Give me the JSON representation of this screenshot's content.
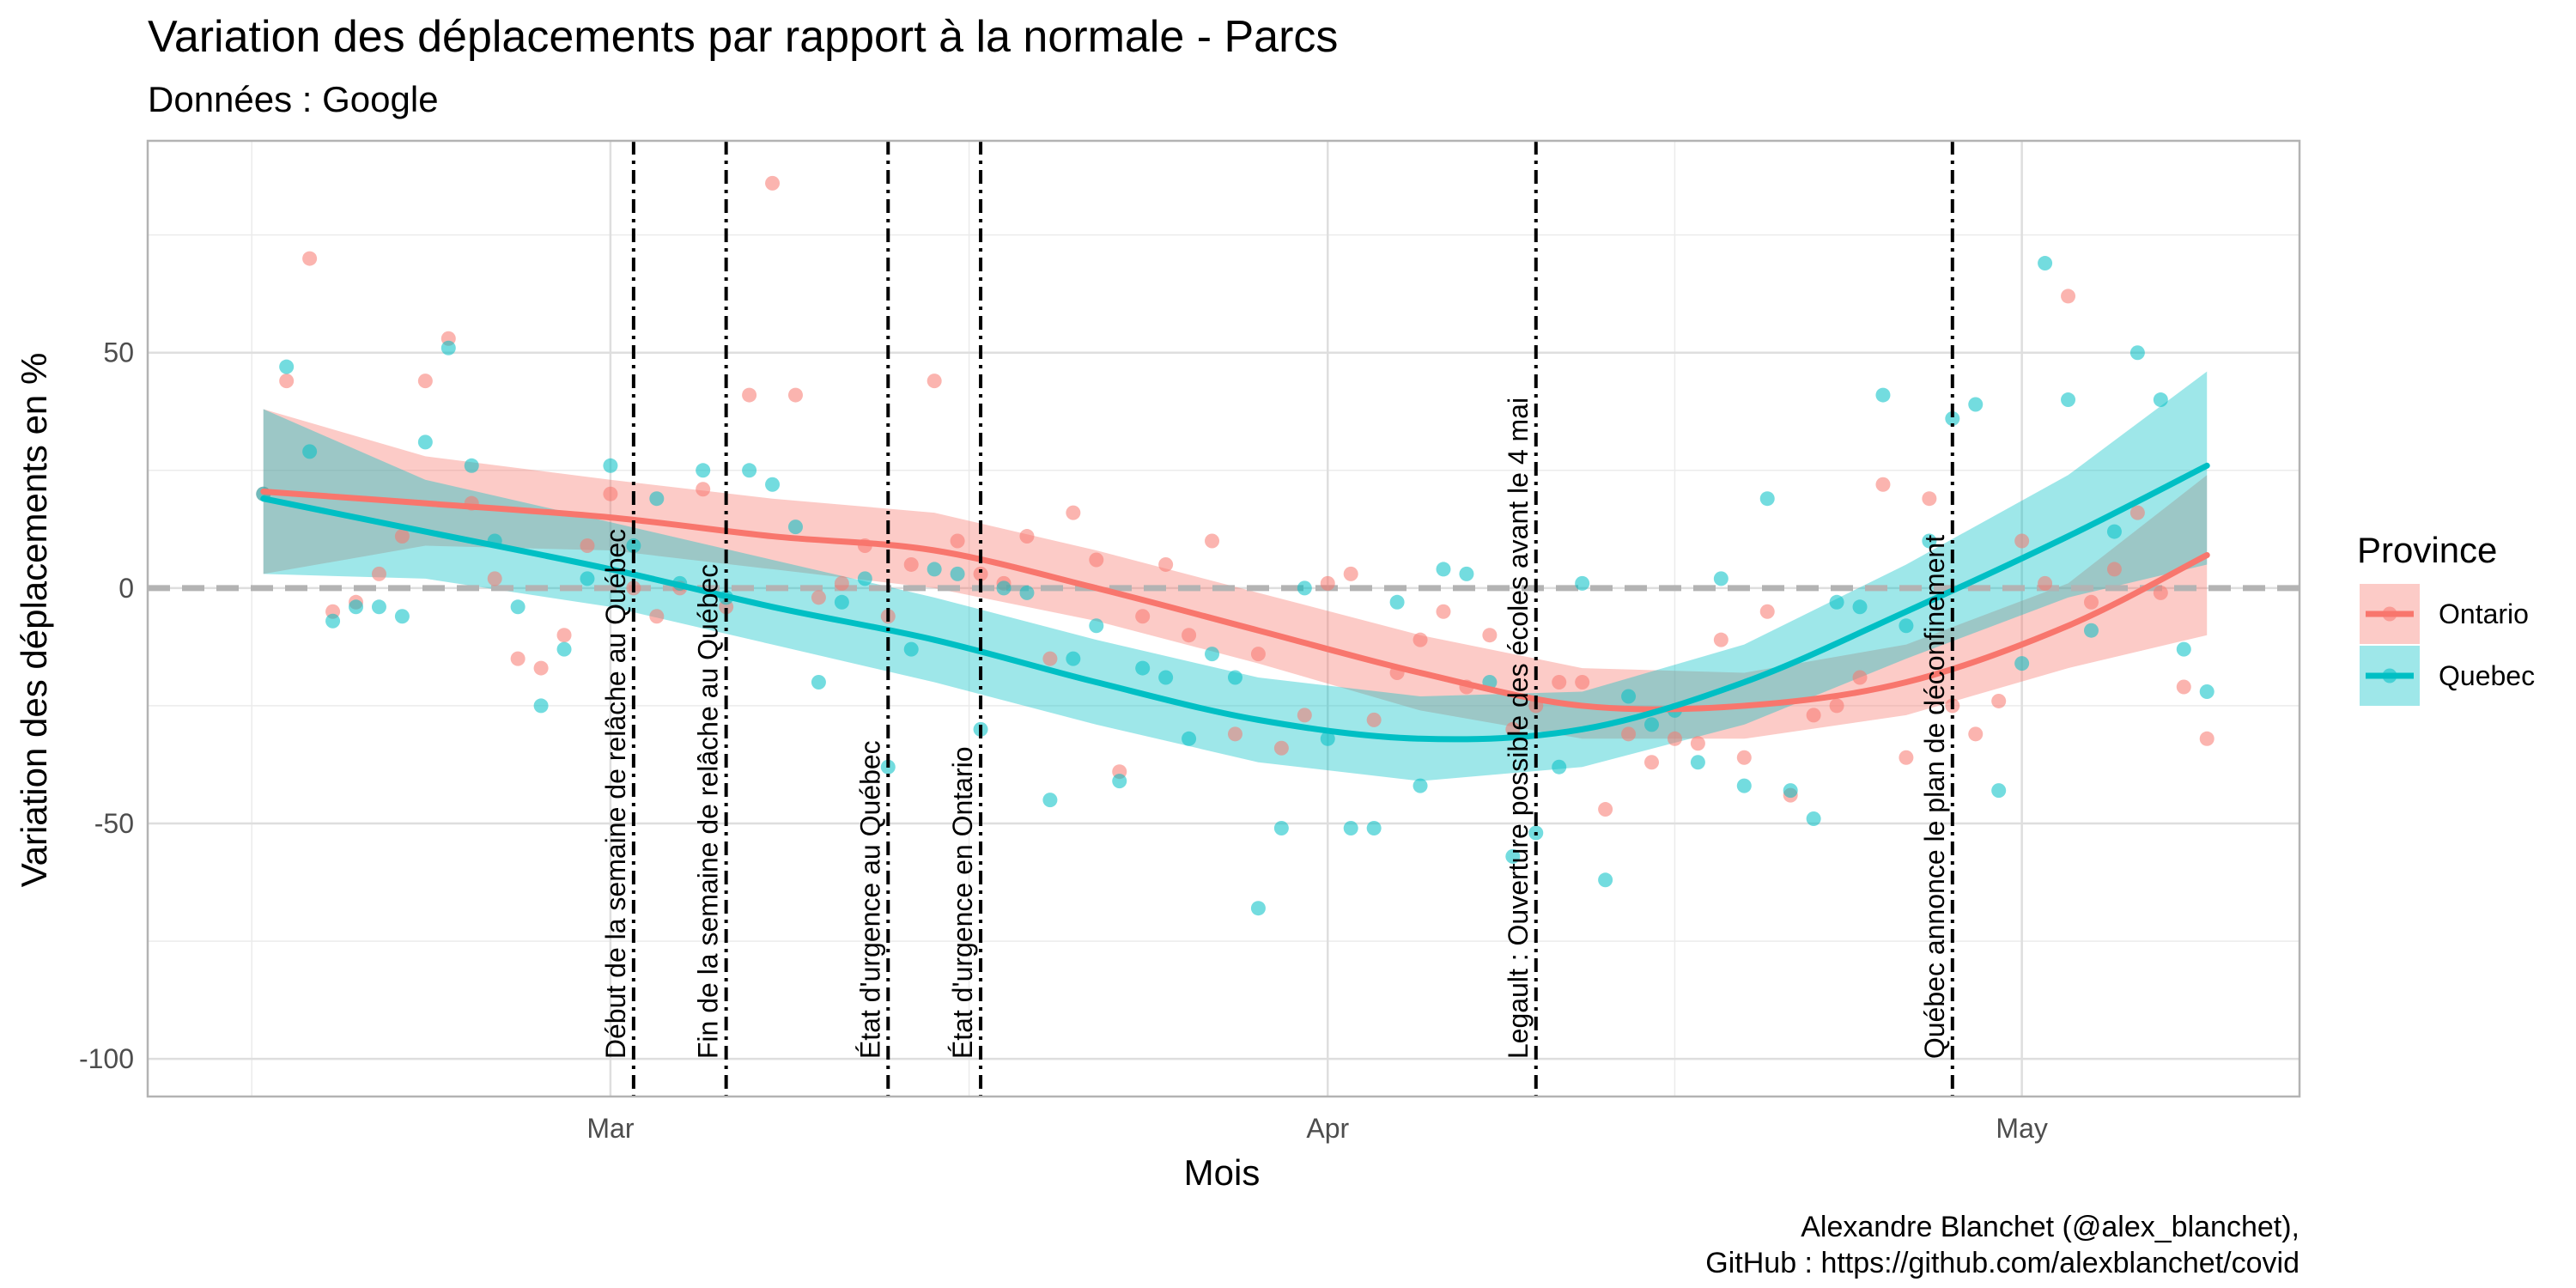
{
  "chart_data": {
    "type": "scatter",
    "title": "Variation des déplacements par rapport à la normale - Parcs",
    "subtitle": "Données : Google",
    "xlabel": "Mois",
    "ylabel": "Variation des déplacements en %",
    "caption_lines": [
      "Alexandre Blanchet (@alex_blanchet),",
      "GitHub : https://github.com/alexblanchet/covid"
    ],
    "x_ticks": [
      {
        "date": "2020-03-01",
        "label": "Mar"
      },
      {
        "date": "2020-04-01",
        "label": "Apr"
      },
      {
        "date": "2020-05-01",
        "label": "May"
      }
    ],
    "y_ticks": [
      50,
      0,
      -50,
      -100
    ],
    "xlim": [
      "2020-02-10",
      "2020-05-13"
    ],
    "ylim": [
      -108,
      95
    ],
    "grid": true,
    "reference_line": {
      "y": 0,
      "style": "dashed",
      "color": "#b3b3b3"
    },
    "legend": {
      "title": "Province",
      "position": "right"
    },
    "events": [
      {
        "date": "2020-03-02",
        "label": "Début de la semaine de relâche au Québec"
      },
      {
        "date": "2020-03-06",
        "label": "Fin de la semaine de relâche au Québec"
      },
      {
        "date": "2020-03-13",
        "label": "État d'urgence au Québec"
      },
      {
        "date": "2020-03-17",
        "label": "État d'urgence en Ontario"
      },
      {
        "date": "2020-04-10",
        "label": "Legault : Ouverture possible des écoles avant le 4 mai"
      },
      {
        "date": "2020-04-28",
        "label": "Québec annonce le plan de déconfinement"
      }
    ],
    "series": [
      {
        "name": "Ontario",
        "color": "#F8766D",
        "points": [
          [
            "2020-02-15",
            20
          ],
          [
            "2020-02-16",
            44
          ],
          [
            "2020-02-17",
            70
          ],
          [
            "2020-02-18",
            -5
          ],
          [
            "2020-02-19",
            -3
          ],
          [
            "2020-02-20",
            3
          ],
          [
            "2020-02-21",
            11
          ],
          [
            "2020-02-22",
            44
          ],
          [
            "2020-02-23",
            53
          ],
          [
            "2020-02-24",
            18
          ],
          [
            "2020-02-25",
            2
          ],
          [
            "2020-02-26",
            -15
          ],
          [
            "2020-02-27",
            -17
          ],
          [
            "2020-02-28",
            -10
          ],
          [
            "2020-02-29",
            9
          ],
          [
            "2020-03-01",
            20
          ],
          [
            "2020-03-02",
            0
          ],
          [
            "2020-03-03",
            -6
          ],
          [
            "2020-03-04",
            0
          ],
          [
            "2020-03-05",
            21
          ],
          [
            "2020-03-06",
            -4
          ],
          [
            "2020-03-07",
            41
          ],
          [
            "2020-03-08",
            86
          ],
          [
            "2020-03-09",
            41
          ],
          [
            "2020-03-10",
            -2
          ],
          [
            "2020-03-11",
            1
          ],
          [
            "2020-03-12",
            9
          ],
          [
            "2020-03-13",
            -6
          ],
          [
            "2020-03-14",
            5
          ],
          [
            "2020-03-15",
            44
          ],
          [
            "2020-03-16",
            10
          ],
          [
            "2020-03-17",
            3
          ],
          [
            "2020-03-18",
            1
          ],
          [
            "2020-03-19",
            11
          ],
          [
            "2020-03-20",
            -15
          ],
          [
            "2020-03-21",
            16
          ],
          [
            "2020-03-22",
            6
          ],
          [
            "2020-03-23",
            -39
          ],
          [
            "2020-03-24",
            -6
          ],
          [
            "2020-03-25",
            5
          ],
          [
            "2020-03-26",
            -10
          ],
          [
            "2020-03-27",
            10
          ],
          [
            "2020-03-28",
            -31
          ],
          [
            "2020-03-29",
            -14
          ],
          [
            "2020-03-30",
            -34
          ],
          [
            "2020-03-31",
            -27
          ],
          [
            "2020-04-01",
            1
          ],
          [
            "2020-04-02",
            3
          ],
          [
            "2020-04-03",
            -28
          ],
          [
            "2020-04-04",
            -18
          ],
          [
            "2020-04-05",
            -11
          ],
          [
            "2020-04-06",
            -5
          ],
          [
            "2020-04-07",
            -21
          ],
          [
            "2020-04-08",
            -10
          ],
          [
            "2020-04-09",
            -30
          ],
          [
            "2020-04-10",
            -25
          ],
          [
            "2020-04-11",
            -20
          ],
          [
            "2020-04-12",
            -20
          ],
          [
            "2020-04-13",
            -47
          ],
          [
            "2020-04-14",
            -31
          ],
          [
            "2020-04-15",
            -37
          ],
          [
            "2020-04-16",
            -32
          ],
          [
            "2020-04-17",
            -33
          ],
          [
            "2020-04-18",
            -11
          ],
          [
            "2020-04-19",
            -36
          ],
          [
            "2020-04-20",
            -5
          ],
          [
            "2020-04-21",
            -44
          ],
          [
            "2020-04-22",
            -27
          ],
          [
            "2020-04-23",
            -25
          ],
          [
            "2020-04-24",
            -19
          ],
          [
            "2020-04-25",
            22
          ],
          [
            "2020-04-26",
            -36
          ],
          [
            "2020-04-27",
            19
          ],
          [
            "2020-04-28",
            -25
          ],
          [
            "2020-04-29",
            -31
          ],
          [
            "2020-04-30",
            -24
          ],
          [
            "2020-05-01",
            10
          ],
          [
            "2020-05-02",
            1
          ],
          [
            "2020-05-03",
            62
          ],
          [
            "2020-05-04",
            -3
          ],
          [
            "2020-05-05",
            4
          ],
          [
            "2020-05-06",
            16
          ],
          [
            "2020-05-07",
            -1
          ],
          [
            "2020-05-08",
            -21
          ],
          [
            "2020-05-09",
            -32
          ]
        ],
        "smooth": [
          [
            "2020-02-15",
            20.5
          ],
          [
            "2020-02-22",
            18
          ],
          [
            "2020-03-01",
            15
          ],
          [
            "2020-03-08",
            11
          ],
          [
            "2020-03-15",
            8
          ],
          [
            "2020-03-22",
            0
          ],
          [
            "2020-03-29",
            -9
          ],
          [
            "2020-04-05",
            -18
          ],
          [
            "2020-04-12",
            -25
          ],
          [
            "2020-04-19",
            -25
          ],
          [
            "2020-04-26",
            -20
          ],
          [
            "2020-05-03",
            -8
          ],
          [
            "2020-05-09",
            7
          ]
        ],
        "band": [
          [
            "2020-02-15",
            3,
            38
          ],
          [
            "2020-02-22",
            9,
            28
          ],
          [
            "2020-03-01",
            8,
            23
          ],
          [
            "2020-03-08",
            4,
            19
          ],
          [
            "2020-03-15",
            0,
            16
          ],
          [
            "2020-03-22",
            -7,
            8
          ],
          [
            "2020-03-29",
            -16,
            -1
          ],
          [
            "2020-04-05",
            -26,
            -10
          ],
          [
            "2020-04-12",
            -32,
            -17
          ],
          [
            "2020-04-19",
            -32,
            -18
          ],
          [
            "2020-04-26",
            -27,
            -12
          ],
          [
            "2020-05-03",
            -17,
            1
          ],
          [
            "2020-05-09",
            -10,
            24
          ]
        ]
      },
      {
        "name": "Quebec",
        "color": "#00BFC4",
        "points": [
          [
            "2020-02-15",
            20
          ],
          [
            "2020-02-16",
            47
          ],
          [
            "2020-02-17",
            29
          ],
          [
            "2020-02-18",
            -7
          ],
          [
            "2020-02-19",
            -4
          ],
          [
            "2020-02-20",
            -4
          ],
          [
            "2020-02-21",
            -6
          ],
          [
            "2020-02-22",
            31
          ],
          [
            "2020-02-23",
            51
          ],
          [
            "2020-02-24",
            26
          ],
          [
            "2020-02-25",
            10
          ],
          [
            "2020-02-26",
            -4
          ],
          [
            "2020-02-27",
            -25
          ],
          [
            "2020-02-28",
            -13
          ],
          [
            "2020-02-29",
            2
          ],
          [
            "2020-03-01",
            26
          ],
          [
            "2020-03-02",
            9
          ],
          [
            "2020-03-03",
            19
          ],
          [
            "2020-03-04",
            1
          ],
          [
            "2020-03-05",
            25
          ],
          [
            "2020-03-06",
            -2
          ],
          [
            "2020-03-07",
            25
          ],
          [
            "2020-03-08",
            22
          ],
          [
            "2020-03-09",
            13
          ],
          [
            "2020-03-10",
            -20
          ],
          [
            "2020-03-11",
            -3
          ],
          [
            "2020-03-12",
            2
          ],
          [
            "2020-03-13",
            -38
          ],
          [
            "2020-03-14",
            -13
          ],
          [
            "2020-03-15",
            4
          ],
          [
            "2020-03-16",
            3
          ],
          [
            "2020-03-17",
            -30
          ],
          [
            "2020-03-18",
            0
          ],
          [
            "2020-03-19",
            -1
          ],
          [
            "2020-03-20",
            -45
          ],
          [
            "2020-03-21",
            -15
          ],
          [
            "2020-03-22",
            -8
          ],
          [
            "2020-03-23",
            -41
          ],
          [
            "2020-03-24",
            -17
          ],
          [
            "2020-03-25",
            -19
          ],
          [
            "2020-03-26",
            -32
          ],
          [
            "2020-03-27",
            -14
          ],
          [
            "2020-03-28",
            -19
          ],
          [
            "2020-03-29",
            -68
          ],
          [
            "2020-03-30",
            -51
          ],
          [
            "2020-03-31",
            0
          ],
          [
            "2020-04-01",
            -32
          ],
          [
            "2020-04-02",
            -51
          ],
          [
            "2020-04-03",
            -51
          ],
          [
            "2020-04-04",
            -3
          ],
          [
            "2020-04-05",
            -42
          ],
          [
            "2020-04-06",
            4
          ],
          [
            "2020-04-07",
            3
          ],
          [
            "2020-04-08",
            -20
          ],
          [
            "2020-04-09",
            -57
          ],
          [
            "2020-04-10",
            -52
          ],
          [
            "2020-04-11",
            -38
          ],
          [
            "2020-04-12",
            1
          ],
          [
            "2020-04-13",
            -62
          ],
          [
            "2020-04-14",
            -23
          ],
          [
            "2020-04-15",
            -29
          ],
          [
            "2020-04-16",
            -26
          ],
          [
            "2020-04-17",
            -37
          ],
          [
            "2020-04-18",
            2
          ],
          [
            "2020-04-19",
            -42
          ],
          [
            "2020-04-20",
            19
          ],
          [
            "2020-04-21",
            -43
          ],
          [
            "2020-04-22",
            -49
          ],
          [
            "2020-04-23",
            -3
          ],
          [
            "2020-04-24",
            -4
          ],
          [
            "2020-04-25",
            41
          ],
          [
            "2020-04-26",
            -8
          ],
          [
            "2020-04-27",
            10
          ],
          [
            "2020-04-28",
            36
          ],
          [
            "2020-04-29",
            39
          ],
          [
            "2020-04-30",
            -43
          ],
          [
            "2020-05-01",
            -16
          ],
          [
            "2020-05-02",
            69
          ],
          [
            "2020-05-03",
            40
          ],
          [
            "2020-05-04",
            -9
          ],
          [
            "2020-05-05",
            12
          ],
          [
            "2020-05-06",
            50
          ],
          [
            "2020-05-07",
            40
          ],
          [
            "2020-05-08",
            -13
          ],
          [
            "2020-05-09",
            -22
          ]
        ],
        "smooth": [
          [
            "2020-02-15",
            19
          ],
          [
            "2020-02-22",
            12
          ],
          [
            "2020-03-01",
            4
          ],
          [
            "2020-03-08",
            -4
          ],
          [
            "2020-03-15",
            -11
          ],
          [
            "2020-03-22",
            -20
          ],
          [
            "2020-03-29",
            -28
          ],
          [
            "2020-04-05",
            -32
          ],
          [
            "2020-04-12",
            -30
          ],
          [
            "2020-04-19",
            -20
          ],
          [
            "2020-04-26",
            -5
          ],
          [
            "2020-05-03",
            11
          ],
          [
            "2020-05-09",
            26
          ]
        ],
        "band": [
          [
            "2020-02-15",
            3,
            38
          ],
          [
            "2020-02-22",
            2,
            23
          ],
          [
            "2020-03-01",
            -4,
            14
          ],
          [
            "2020-03-08",
            -12,
            6
          ],
          [
            "2020-03-15",
            -20,
            -2
          ],
          [
            "2020-03-22",
            -29,
            -11
          ],
          [
            "2020-03-29",
            -37,
            -19
          ],
          [
            "2020-04-05",
            -41,
            -23
          ],
          [
            "2020-04-12",
            -38,
            -22
          ],
          [
            "2020-04-19",
            -29,
            -12
          ],
          [
            "2020-04-26",
            -15,
            5
          ],
          [
            "2020-05-03",
            -2,
            24
          ],
          [
            "2020-05-09",
            5,
            46
          ]
        ]
      }
    ]
  }
}
